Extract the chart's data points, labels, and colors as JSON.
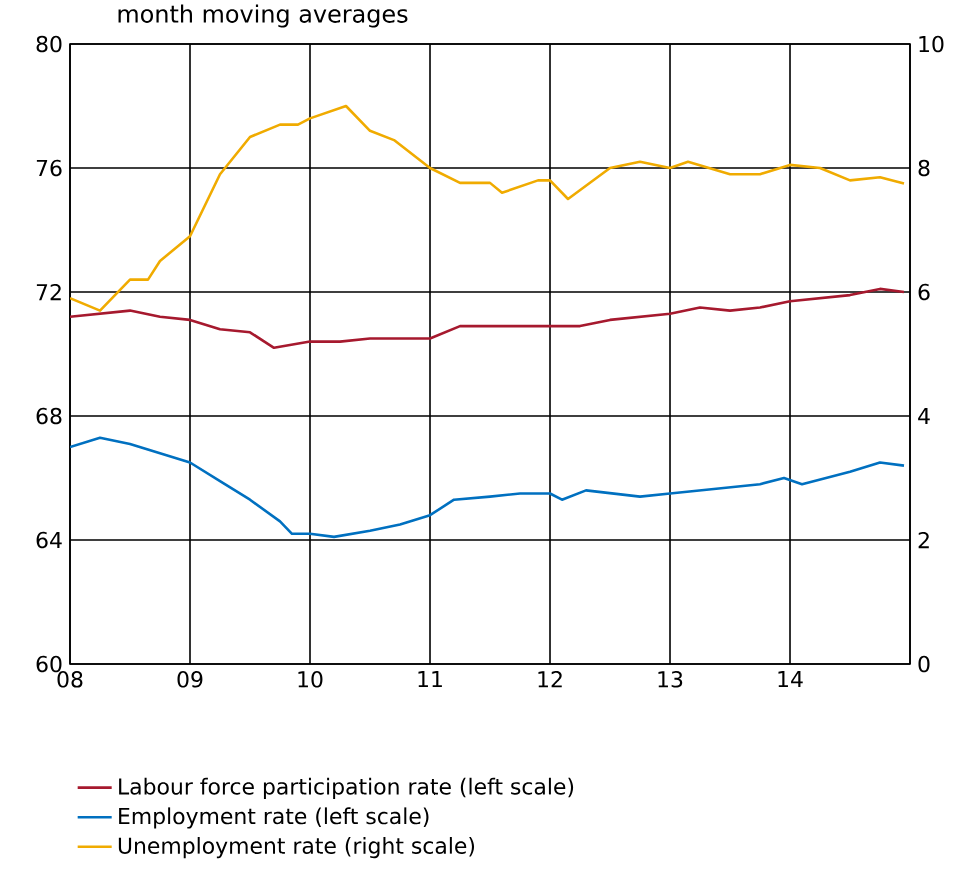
{
  "chart_data": {
    "type": "line",
    "title": "month moving averages",
    "xlim": [
      2008,
      2015
    ],
    "xticks": [
      {
        "value": 2008,
        "label": "08"
      },
      {
        "value": 2009,
        "label": "09"
      },
      {
        "value": 2010,
        "label": "10"
      },
      {
        "value": 2011,
        "label": "11"
      },
      {
        "value": 2012,
        "label": "12"
      },
      {
        "value": 2013,
        "label": "13"
      },
      {
        "value": 2014,
        "label": "14"
      }
    ],
    "ylim": [
      60,
      80
    ],
    "yticks": [
      60,
      64,
      68,
      72,
      76,
      80
    ],
    "y2lim": [
      0,
      10
    ],
    "y2ticks": [
      0,
      2,
      4,
      6,
      8,
      10
    ],
    "grid": true,
    "legend": "bottom",
    "series": [
      {
        "name": "Labour force participation rate (left scale)",
        "color": "#a6192e",
        "x": [
          2008.0,
          2008.25,
          2008.5,
          2008.75,
          2009.0,
          2009.25,
          2009.5,
          2009.7,
          2009.85,
          2010.0,
          2010.25,
          2010.5,
          2010.75,
          2011.0,
          2011.25,
          2011.5,
          2011.75,
          2012.0,
          2012.25,
          2012.5,
          2012.75,
          2013.0,
          2013.25,
          2013.5,
          2013.75,
          2014.0,
          2014.25,
          2014.5,
          2014.75,
          2014.95
        ],
        "values": [
          71.2,
          71.3,
          71.4,
          71.2,
          71.1,
          70.8,
          70.7,
          70.2,
          70.3,
          70.4,
          70.4,
          70.5,
          70.5,
          70.5,
          70.9,
          70.9,
          70.9,
          70.9,
          70.9,
          71.1,
          71.2,
          71.3,
          71.5,
          71.4,
          71.5,
          71.7,
          71.8,
          71.9,
          72.1,
          72.0
        ]
      },
      {
        "name": "Employment rate (left scale)",
        "color": "#0070c0",
        "x": [
          2008.0,
          2008.25,
          2008.5,
          2008.75,
          2009.0,
          2009.25,
          2009.5,
          2009.75,
          2009.85,
          2010.0,
          2010.2,
          2010.5,
          2010.75,
          2011.0,
          2011.2,
          2011.5,
          2011.75,
          2012.0,
          2012.1,
          2012.3,
          2012.75,
          2013.0,
          2013.5,
          2013.75,
          2013.95,
          2014.1,
          2014.5,
          2014.75,
          2014.95
        ],
        "values": [
          67.0,
          67.3,
          67.1,
          66.8,
          66.5,
          65.9,
          65.3,
          64.6,
          64.2,
          64.2,
          64.1,
          64.3,
          64.5,
          64.8,
          65.3,
          65.4,
          65.5,
          65.5,
          65.3,
          65.6,
          65.4,
          65.5,
          65.7,
          65.8,
          66.0,
          65.8,
          66.2,
          66.5,
          66.4
        ]
      },
      {
        "name": "Unemployment rate (right scale)",
        "color": "#f0ab00",
        "axis": "y2",
        "x": [
          2008.0,
          2008.25,
          2008.5,
          2008.65,
          2008.75,
          2009.0,
          2009.25,
          2009.5,
          2009.75,
          2009.9,
          2010.0,
          2010.3,
          2010.5,
          2010.7,
          2011.0,
          2011.25,
          2011.5,
          2011.6,
          2011.9,
          2012.0,
          2012.15,
          2012.5,
          2012.75,
          2013.0,
          2013.15,
          2013.5,
          2013.75,
          2014.0,
          2014.25,
          2014.5,
          2014.75,
          2014.95
        ],
        "values": [
          5.9,
          5.7,
          6.2,
          6.2,
          6.5,
          6.9,
          7.9,
          8.5,
          8.7,
          8.7,
          8.8,
          9.0,
          8.6,
          8.45,
          8.0,
          7.76,
          7.76,
          7.6,
          7.8,
          7.8,
          7.5,
          8.0,
          8.1,
          8.0,
          8.1,
          7.9,
          7.9,
          8.05,
          8.0,
          7.8,
          7.85,
          7.75
        ]
      }
    ]
  }
}
